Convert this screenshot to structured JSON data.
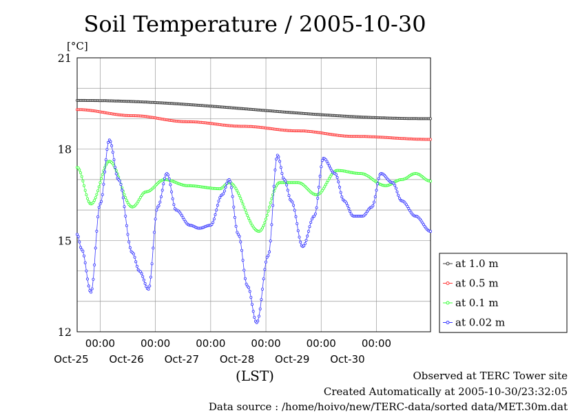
{
  "chart_data": {
    "type": "line",
    "title": "Soil Temperature / 2005-10-30",
    "unit": "[°C]",
    "xlabel": "(LST)",
    "ylim": [
      12,
      21
    ],
    "y_ticks": [
      12,
      15,
      18,
      21
    ],
    "x_range": [
      "2005-10-24T14:00",
      "2005-10-30T23:30"
    ],
    "x_tick_times": [
      "2005-10-25T00:00",
      "2005-10-26T00:00",
      "2005-10-27T00:00",
      "2005-10-28T00:00",
      "2005-10-29T00:00",
      "2005-10-30T00:00"
    ],
    "x_tick_labels": [
      "00:00",
      "00:00",
      "00:00",
      "00:00",
      "00:00",
      "00:00"
    ],
    "x_date_labels": [
      "Oct-25",
      "Oct-26",
      "Oct-27",
      "Oct-28",
      "Oct-29",
      "Oct-30"
    ],
    "grid": true,
    "legend_position": "right",
    "series": [
      {
        "name": "at 1.0 m",
        "color": "#333333",
        "x": [
          "2005-10-24T14:00",
          "2005-10-30T23:30"
        ],
        "y": [
          19.6,
          19.0
        ]
      },
      {
        "name": "at 0.5 m",
        "color": "#ff3333",
        "x": [
          "2005-10-24T14:00",
          "2005-10-25T14:00",
          "2005-10-26T14:00",
          "2005-10-27T14:00",
          "2005-10-28T14:00",
          "2005-10-29T14:00",
          "2005-10-30T23:30"
        ],
        "y": [
          19.3,
          19.1,
          18.9,
          18.75,
          18.6,
          18.42,
          18.32
        ]
      },
      {
        "name": "at 0.1 m",
        "color": "#33ff33",
        "x": [
          "2005-10-24T14:00",
          "2005-10-24T20:00",
          "2005-10-25T04:00",
          "2005-10-25T14:00",
          "2005-10-25T20:00",
          "2005-10-26T04:00",
          "2005-10-26T14:00",
          "2005-10-27T04:00",
          "2005-10-27T08:00",
          "2005-10-27T21:00",
          "2005-10-28T06:00",
          "2005-10-28T14:00",
          "2005-10-28T22:00",
          "2005-10-29T07:00",
          "2005-10-29T17:00",
          "2005-10-30T04:00",
          "2005-10-30T11:00",
          "2005-10-30T17:00",
          "2005-10-30T23:30"
        ],
        "y": [
          17.4,
          16.2,
          17.6,
          16.1,
          16.6,
          17.0,
          16.8,
          16.7,
          16.9,
          15.3,
          16.9,
          16.9,
          16.5,
          17.3,
          17.2,
          16.8,
          17.0,
          17.2,
          16.95
        ]
      },
      {
        "name": "at 0.02 m",
        "color": "#3333ff",
        "x": [
          "2005-10-24T14:00",
          "2005-10-24T16:00",
          "2005-10-24T20:00",
          "2005-10-25T00:00",
          "2005-10-25T04:00",
          "2005-10-25T08:00",
          "2005-10-25T14:00",
          "2005-10-25T17:00",
          "2005-10-25T21:00",
          "2005-10-26T01:00",
          "2005-10-26T05:00",
          "2005-10-26T09:00",
          "2005-10-26T15:00",
          "2005-10-26T19:00",
          "2005-10-27T00:00",
          "2005-10-27T05:00",
          "2005-10-27T08:00",
          "2005-10-27T12:00",
          "2005-10-27T16:00",
          "2005-10-27T20:00",
          "2005-10-28T01:00",
          "2005-10-28T05:00",
          "2005-10-28T08:00",
          "2005-10-28T11:00",
          "2005-10-28T16:00",
          "2005-10-28T21:00",
          "2005-10-29T01:00",
          "2005-10-29T06:00",
          "2005-10-29T10:00",
          "2005-10-29T14:00",
          "2005-10-29T18:00",
          "2005-10-29T22:00",
          "2005-10-30T02:00",
          "2005-10-30T07:00",
          "2005-10-30T11:00",
          "2005-10-30T17:00",
          "2005-10-30T23:30"
        ],
        "y": [
          15.2,
          14.7,
          13.3,
          16.2,
          18.3,
          17.0,
          14.6,
          14.0,
          13.4,
          16.1,
          17.2,
          16.0,
          15.5,
          15.4,
          15.5,
          16.5,
          17.0,
          15.2,
          13.5,
          12.3,
          14.5,
          17.8,
          17.0,
          16.3,
          14.8,
          15.8,
          17.7,
          17.2,
          16.3,
          15.8,
          15.8,
          16.1,
          17.2,
          16.9,
          16.3,
          15.8,
          15.3
        ]
      }
    ]
  },
  "footer": {
    "line1": "Observed at TERC Tower site",
    "line2": "Created Automatically at 2005-10-30/23:32:05",
    "line3": "Data source : /home/hoivo/new/TERC-data/sorted data/MET.30m.dat"
  }
}
